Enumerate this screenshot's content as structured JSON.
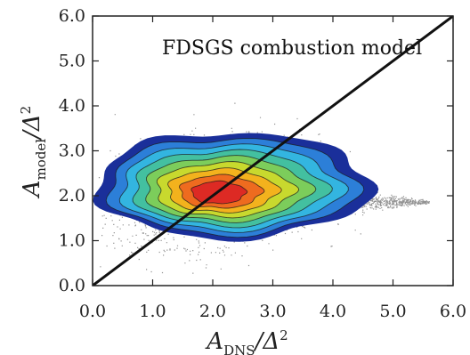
{
  "chart_data": {
    "type": "heatmap",
    "xlabel": {
      "base": "A",
      "sub": "DNS",
      "tail": "/Δ",
      "sup": "2"
    },
    "ylabel": {
      "base": "A",
      "sub": "model",
      "tail": "/Δ",
      "sup": "2"
    },
    "xlim": [
      0.0,
      6.0
    ],
    "ylim": [
      0.0,
      6.0
    ],
    "xticks": [
      "0.0",
      "1.0",
      "2.0",
      "3.0",
      "4.0",
      "5.0",
      "6.0"
    ],
    "yticks": [
      "0.0",
      "1.0",
      "2.0",
      "3.0",
      "4.0",
      "5.0",
      "6.0"
    ],
    "annotation": "FDSGS combustion model",
    "reference_line": {
      "x": [
        0.0,
        6.0
      ],
      "y": [
        0.0,
        6.0
      ]
    },
    "density_peak": {
      "x": 2.05,
      "y": 2.05
    },
    "colormap": [
      "#1a2f9a",
      "#2c7fd8",
      "#33b5e0",
      "#43c0a0",
      "#7ccd5b",
      "#c8d92e",
      "#f3b21d",
      "#ee6b1f",
      "#dd2a24"
    ],
    "grid": false
  }
}
